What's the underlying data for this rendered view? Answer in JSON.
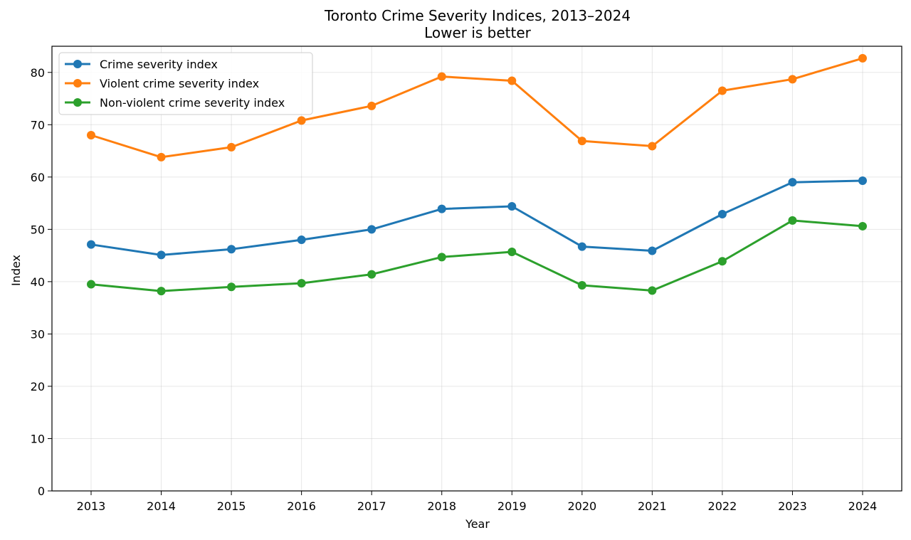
{
  "chart_data": {
    "type": "line",
    "title": "Toronto Crime Severity Indices, 2013–2024",
    "subtitle": "Lower is better",
    "xlabel": "Year",
    "ylabel": "Index",
    "x": [
      "2013",
      "2014",
      "2015",
      "2016",
      "2017",
      "2018",
      "2019",
      "2020",
      "2021",
      "2022",
      "2023",
      "2024"
    ],
    "ylim": [
      0,
      85
    ],
    "yticks": [
      0,
      10,
      20,
      30,
      40,
      50,
      60,
      70,
      80
    ],
    "grid": true,
    "legend_position": "top-left",
    "series": [
      {
        "name": "Crime severity index",
        "color": "#1f77b4",
        "values": [
          47.1,
          45.1,
          46.2,
          48.0,
          50.0,
          53.9,
          54.4,
          46.7,
          45.9,
          52.9,
          59.0,
          59.3
        ]
      },
      {
        "name": "Violent crime severity index",
        "color": "#ff7f0e",
        "values": [
          68.0,
          63.8,
          65.7,
          70.8,
          73.6,
          79.2,
          78.4,
          66.9,
          65.9,
          76.5,
          78.7,
          82.7
        ]
      },
      {
        "name": "Non-violent crime severity index",
        "color": "#2ca02c",
        "values": [
          39.5,
          38.2,
          39.0,
          39.7,
          41.4,
          44.7,
          45.7,
          39.3,
          38.3,
          43.9,
          51.7,
          50.6
        ]
      }
    ]
  }
}
